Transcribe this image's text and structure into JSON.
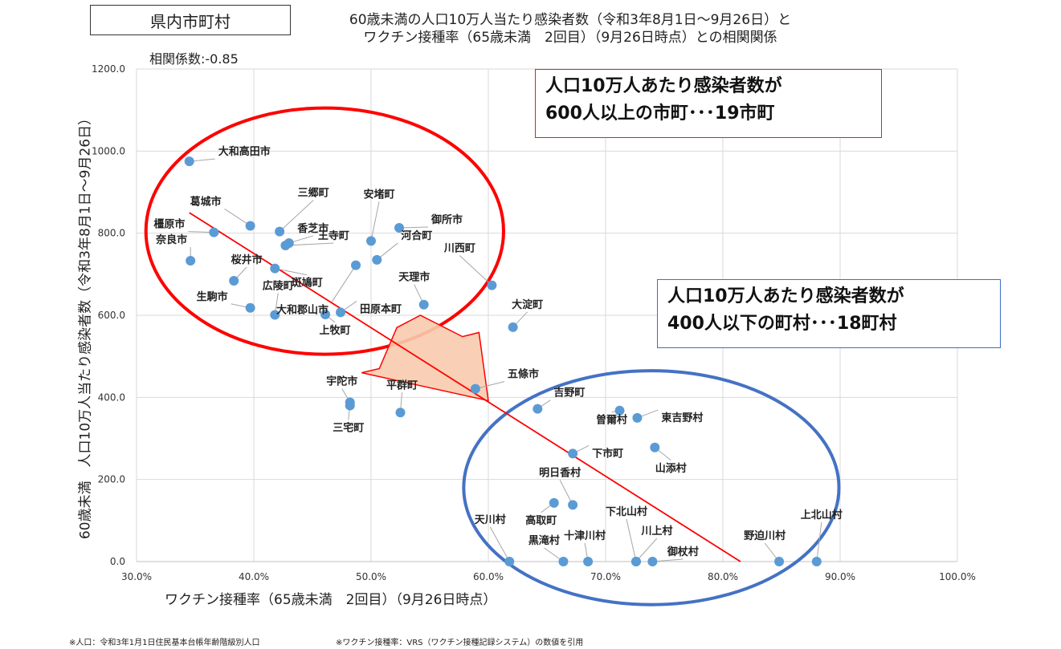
{
  "header": {
    "tag": "県内市町村",
    "title_line1": "60歳未満の人口10万人当たり感染者数（令和3年8月1日～9月26日）と",
    "title_line2": "ワクチン接種率（65歳未満　2回目）（9月26日時点）との相関関係",
    "correlation": "相関係数:-0.85"
  },
  "callouts": {
    "high": {
      "line1": "人口10万人あたり感染者数が",
      "line2": "600人以上の市町･･･19市町"
    },
    "low": {
      "line1": "人口10万人あたり感染者数が",
      "line2": "400人以下の町村･･･18町村"
    }
  },
  "notes": {
    "population": "※人口：令和3年1月1日住民基本台帳年齢階級別人口",
    "vaccine": "※ワクチン接種率：VRS（ワクチン接種記録システム）の数値を引用"
  },
  "colors": {
    "point": "#5b9bd5",
    "trend": "#ff0000",
    "high_ellipse": "#ff0000",
    "low_ellipse": "#4472c4",
    "arrow_fill": "#f8cbad",
    "arrow_stroke": "#ff0000",
    "grid": "#d9d9d9"
  },
  "chart_data": {
    "type": "scatter",
    "xlabel": "ワクチン接種率（65歳未満　2回目）（9月26日時点）",
    "ylabel": "60歳未満　人口10万人当たり感染者数（令和3年8月1日～9月26日）",
    "xlim": [
      30,
      100
    ],
    "ylim": [
      0,
      1200
    ],
    "x_ticks": [
      "30.0%",
      "40.0%",
      "50.0%",
      "60.0%",
      "70.0%",
      "80.0%",
      "90.0%",
      "100.0%"
    ],
    "y_ticks": [
      "0.0",
      "200.0",
      "400.0",
      "600.0",
      "800.0",
      "1000.0",
      "1200.0"
    ],
    "grid": true,
    "trendline": {
      "x": [
        34.5,
        81.5
      ],
      "y": [
        850,
        0
      ]
    },
    "points": [
      {
        "label": "大和高田市",
        "x": 34.5,
        "y": 975
      },
      {
        "label": "橿原市",
        "x": 36.6,
        "y": 802
      },
      {
        "label": "奈良市",
        "x": 34.6,
        "y": 733
      },
      {
        "label": "葛城市",
        "x": 39.7,
        "y": 818
      },
      {
        "label": "桜井市",
        "x": 38.3,
        "y": 684
      },
      {
        "label": "生駒市",
        "x": 39.7,
        "y": 618
      },
      {
        "label": "三郷町",
        "x": 42.2,
        "y": 804
      },
      {
        "label": "香芝市",
        "x": 43.0,
        "y": 776
      },
      {
        "label": "王寺町",
        "x": 42.7,
        "y": 770
      },
      {
        "label": "斑鳩町",
        "x": 41.8,
        "y": 714
      },
      {
        "label": "広陵町",
        "x": 41.8,
        "y": 601
      },
      {
        "label": "安堵町",
        "x": 50.0,
        "y": 781
      },
      {
        "label": "御所市",
        "x": 52.4,
        "y": 813
      },
      {
        "label": "河合町",
        "x": 50.5,
        "y": 735
      },
      {
        "label": "大和郡山市",
        "x": 48.7,
        "y": 722
      },
      {
        "label": "上牧町",
        "x": 46.1,
        "y": 602
      },
      {
        "label": "田原本町",
        "x": 47.4,
        "y": 607
      },
      {
        "label": "天理市",
        "x": 54.5,
        "y": 626
      },
      {
        "label": "川西町",
        "x": 60.3,
        "y": 673
      },
      {
        "label": "大淀町",
        "x": 62.1,
        "y": 571
      },
      {
        "label": "五條市",
        "x": 58.9,
        "y": 421
      },
      {
        "label": "宇陀市",
        "x": 48.2,
        "y": 388
      },
      {
        "label": "三宅町",
        "x": 48.2,
        "y": 380
      },
      {
        "label": "平群町",
        "x": 52.5,
        "y": 363
      },
      {
        "label": "吉野町",
        "x": 64.2,
        "y": 372
      },
      {
        "label": "曽爾村",
        "x": 71.2,
        "y": 368
      },
      {
        "label": "東吉野村",
        "x": 72.7,
        "y": 350
      },
      {
        "label": "下市町",
        "x": 67.2,
        "y": 263
      },
      {
        "label": "山添村",
        "x": 74.2,
        "y": 278
      },
      {
        "label": "明日香村",
        "x": 67.2,
        "y": 138
      },
      {
        "label": "高取町",
        "x": 65.6,
        "y": 143
      },
      {
        "label": "天川村",
        "x": 61.8,
        "y": 0
      },
      {
        "label": "黒滝村",
        "x": 66.4,
        "y": 0
      },
      {
        "label": "十津川村",
        "x": 68.5,
        "y": 0
      },
      {
        "label": "下北山村",
        "x": 72.6,
        "y": 0
      },
      {
        "label": "川上村",
        "x": 72.6,
        "y": 0
      },
      {
        "label": "御杖村",
        "x": 74.0,
        "y": 0
      },
      {
        "label": "野迫川村",
        "x": 84.8,
        "y": 0
      },
      {
        "label": "上北山村",
        "x": 88.0,
        "y": 0
      }
    ]
  }
}
